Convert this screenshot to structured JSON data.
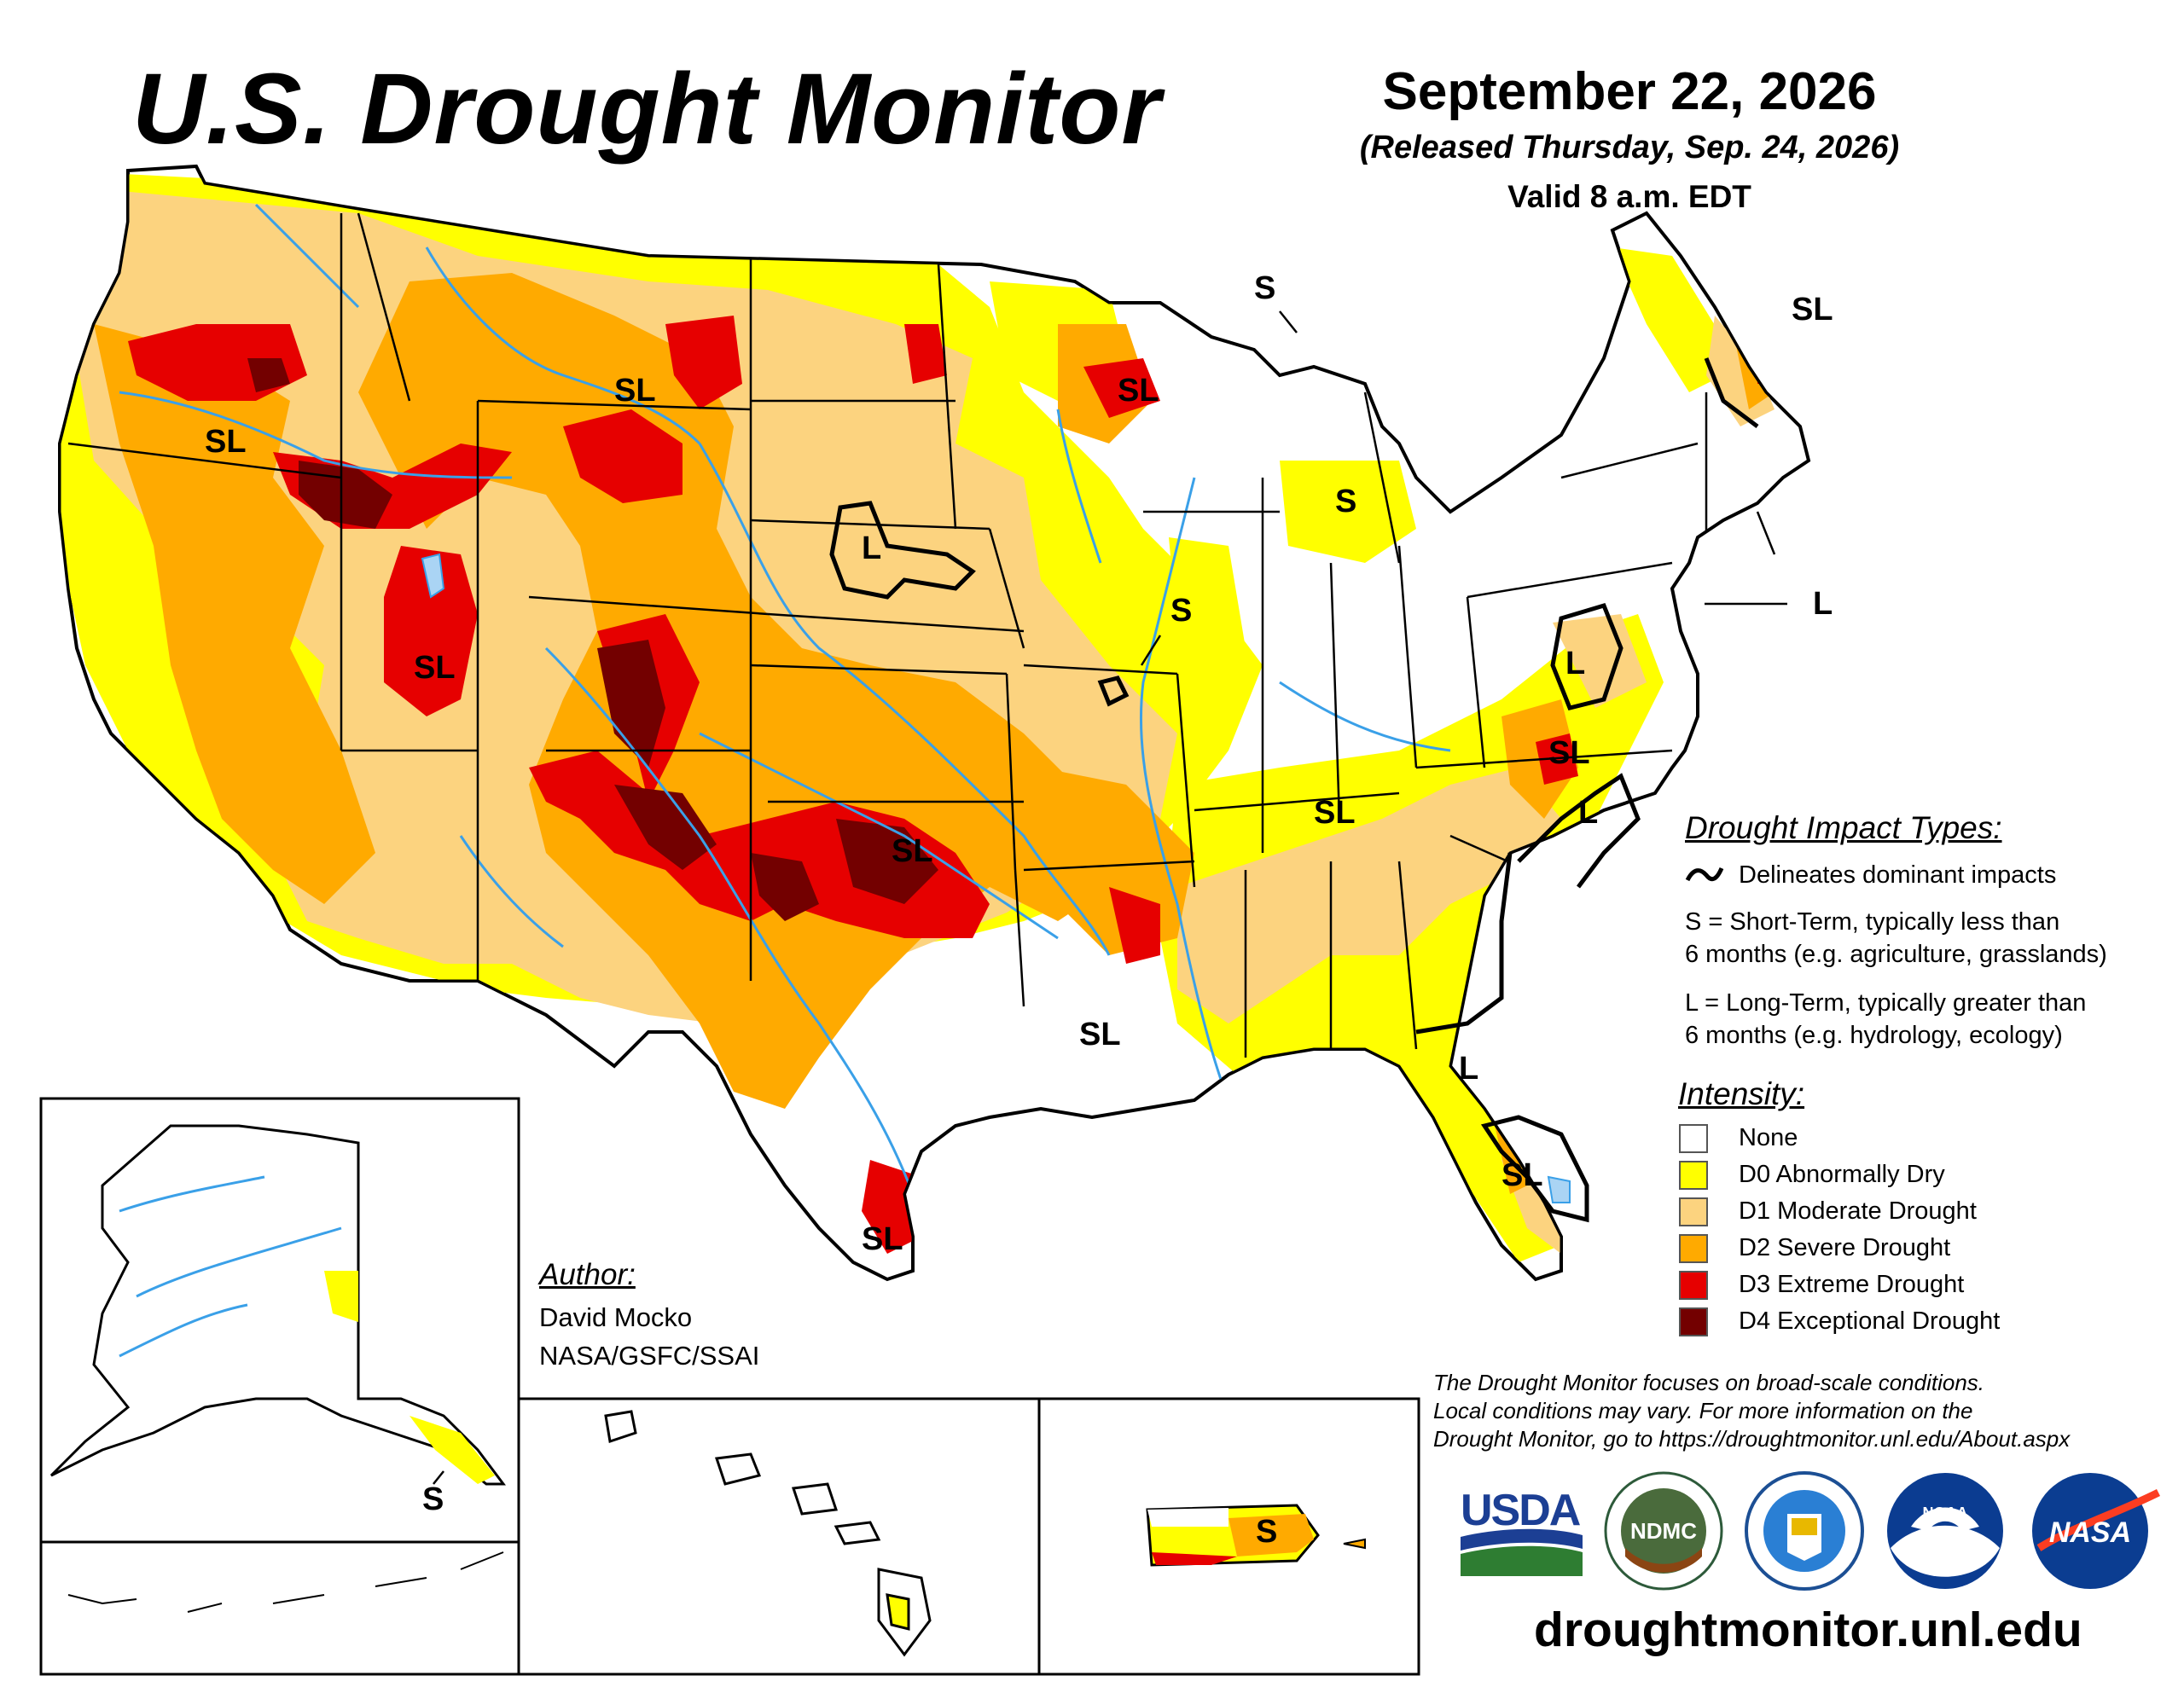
{
  "header": {
    "title": "U.S. Drought Monitor",
    "date": "September 22, 2026",
    "released": "(Released Thursday, Sep. 24, 2026)",
    "valid": "Valid 8 a.m. EDT"
  },
  "impact_legend": {
    "heading": "Drought Impact Types:",
    "delineates": "Delineates dominant impacts",
    "short_line1": "S = Short-Term, typically less than",
    "short_line2": "6 months (e.g. agriculture, grasslands)",
    "long_line1": "L = Long-Term, typically greater than",
    "long_line2": "6 months (e.g. hydrology, ecology)"
  },
  "intensity_legend": {
    "heading": "Intensity:",
    "items": [
      {
        "label": "None",
        "color": "#ffffff"
      },
      {
        "label": "D0 Abnormally Dry",
        "color": "#ffff00"
      },
      {
        "label": "D1 Moderate Drought",
        "color": "#fcd37f"
      },
      {
        "label": "D2 Severe Drought",
        "color": "#ffaa00"
      },
      {
        "label": "D3 Extreme Drought",
        "color": "#e60000"
      },
      {
        "label": "D4 Exceptional Drought",
        "color": "#730000"
      }
    ]
  },
  "author": {
    "heading": "Author:",
    "name": "David Mocko",
    "org": "NASA/GSFC/SSAI"
  },
  "note": {
    "line1": "The Drought Monitor focuses on broad-scale conditions.",
    "line2": "Local conditions may vary. For more information on the",
    "line3": "Drought Monitor, go to https://droughtmonitor.unl.edu/About.aspx"
  },
  "site": "droughtmonitor.unl.edu",
  "logos": {
    "usda": "USDA",
    "ndmc": "NDMC",
    "noaa": "NOAA",
    "nasa": "NASA"
  },
  "map_labels": {
    "sl": "SL",
    "s": "S",
    "l": "L"
  }
}
